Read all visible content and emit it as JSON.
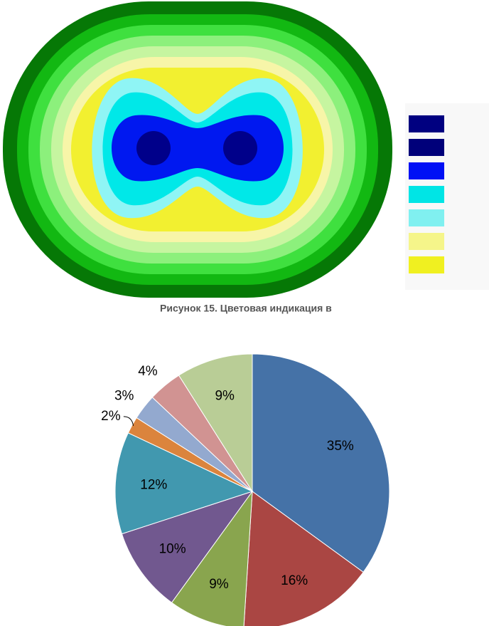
{
  "caption": "Рисунок 15. Цветовая индикация в",
  "chart_data": {
    "type": "pie",
    "values": [
      35,
      16,
      9,
      10,
      12,
      2,
      3,
      4,
      9
    ],
    "value_labels": [
      "35%",
      "16%",
      "9%",
      "10%",
      "12%",
      "2%",
      "3%",
      "4%",
      "9%"
    ],
    "colors": [
      "#4572a7",
      "#aa4643",
      "#89a54e",
      "#71588f",
      "#4198af",
      "#db843d",
      "#93a9cf",
      "#d19392",
      "#b9cd96"
    ]
  }
}
